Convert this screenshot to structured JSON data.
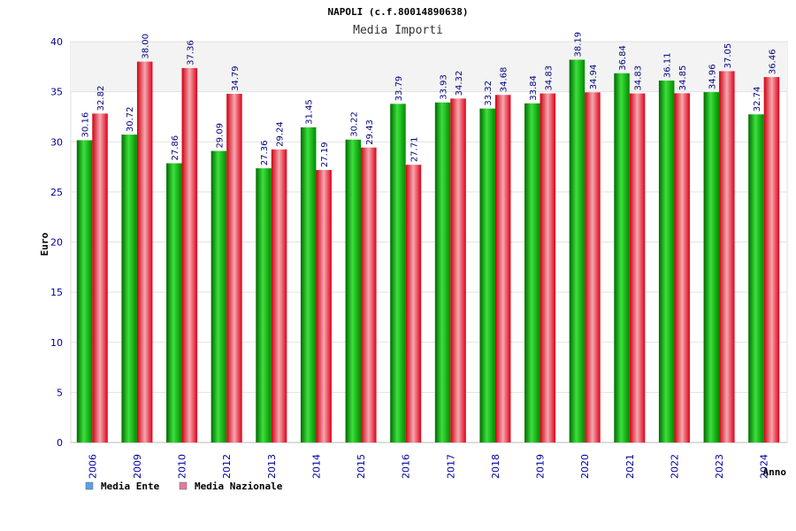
{
  "chart_data": {
    "type": "bar",
    "title": "NAPOLI (c.f.80014890638)",
    "subtitle": "Media Importi",
    "xlabel": "Anno",
    "ylabel": "Euro",
    "ylim": [
      0,
      40
    ],
    "yticks": [
      "0",
      "5",
      "10",
      "15",
      "20",
      "25",
      "30",
      "35",
      "40"
    ],
    "grid": true,
    "legend_position": "bottom-left",
    "categories": [
      "2006",
      "2009",
      "2010",
      "2012",
      "2013",
      "2014",
      "2015",
      "2016",
      "2017",
      "2018",
      "2019",
      "2020",
      "2021",
      "2022",
      "2023",
      "2024"
    ],
    "series": [
      {
        "name": "Media Ente",
        "color": "#00a000",
        "legend_color": "#5aa0e6",
        "values": [
          30.16,
          30.72,
          27.86,
          29.09,
          27.36,
          31.45,
          30.22,
          33.79,
          33.93,
          33.32,
          33.84,
          38.19,
          36.84,
          36.11,
          34.96,
          32.74
        ],
        "labels": [
          "30.16",
          "30.72",
          "27.86",
          "29.09",
          "27.36",
          "31.45",
          "30.22",
          "33.79",
          "33.93",
          "33.32",
          "33.84",
          "38.19",
          "36.84",
          "36.11",
          "34.96",
          "32.74"
        ]
      },
      {
        "name": "Media Nazionale",
        "color": "#e02020",
        "legend_color": "#e07aa0",
        "values": [
          32.82,
          38.0,
          37.36,
          34.79,
          29.24,
          27.19,
          29.43,
          27.71,
          34.32,
          34.68,
          34.83,
          34.94,
          34.83,
          34.85,
          37.05,
          36.46
        ],
        "labels": [
          "32.82",
          "38.00",
          "37.36",
          "34.79",
          "29.24",
          "27.19",
          "29.43",
          "27.71",
          "34.32",
          "34.68",
          "34.83",
          "34.94",
          "34.83",
          "34.85",
          "37.05",
          "36.46"
        ]
      }
    ]
  }
}
